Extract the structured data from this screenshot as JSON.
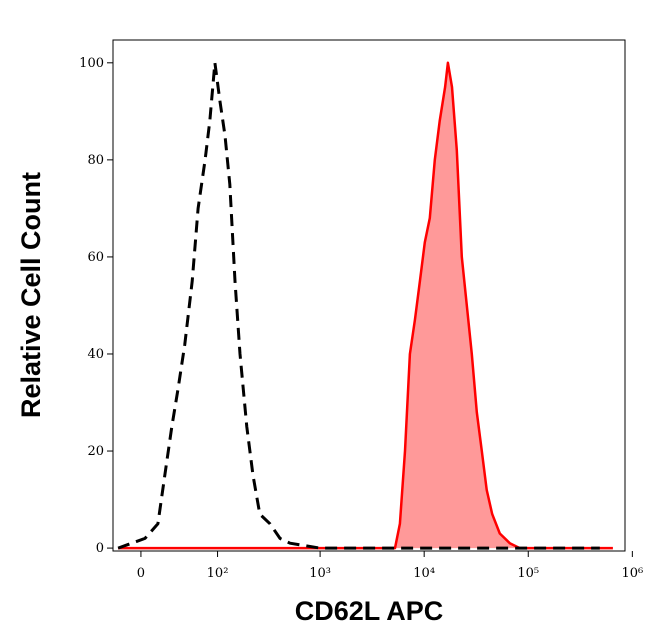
{
  "chart_data": {
    "type": "histogram-overlay",
    "x_label": "CD62L APC",
    "y_label": "Relative Cell Count",
    "x_scale": "biexponential",
    "xlim": [
      -25,
      850000
    ],
    "ylim": [
      -0.6,
      104.7
    ],
    "xticks": [
      0,
      {
        "value": 100,
        "label": "10²"
      },
      {
        "value": 1000,
        "label": "10³"
      },
      {
        "value": 10000,
        "label": "10⁴"
      },
      {
        "value": 100000,
        "label": "10⁵"
      },
      {
        "value": 1000000,
        "label": "10⁶"
      }
    ],
    "yticks": [
      0,
      20,
      40,
      60,
      80,
      100
    ],
    "grid": false,
    "series": [
      {
        "color": "#000000",
        "style": "dashed",
        "filled": false,
        "x": [
          -20,
          3.4,
          14.6,
          21,
          28,
          35,
          43,
          53,
          62,
          74,
          83,
          94,
          106,
          119,
          133,
          150,
          168,
          196,
          225,
          262,
          329,
          411,
          513,
          996,
          487000
        ],
        "values": [
          0,
          2,
          5,
          15,
          25,
          33,
          42,
          55,
          70,
          80,
          88,
          100,
          92,
          85,
          75,
          55,
          40,
          25,
          15,
          7,
          5,
          2,
          1,
          0,
          0
        ]
      },
      {
        "color": "#ff0000",
        "style": "solid",
        "filled": true,
        "fill": "#ff9999",
        "x": [
          -20,
          5240,
          5850,
          6540,
          7300,
          8150,
          9090,
          10150,
          11330,
          12650,
          14110,
          15900,
          16900,
          18500,
          20600,
          23000,
          25700,
          28700,
          32000,
          35800,
          39900,
          45000,
          53300,
          66500,
          82800,
          650000
        ],
        "values": [
          0,
          0,
          5,
          20,
          40,
          47,
          55,
          63,
          68,
          80,
          88,
          95,
          100,
          95,
          82,
          60,
          50,
          40,
          28,
          20,
          12,
          7,
          3,
          1,
          0,
          0
        ]
      }
    ]
  }
}
